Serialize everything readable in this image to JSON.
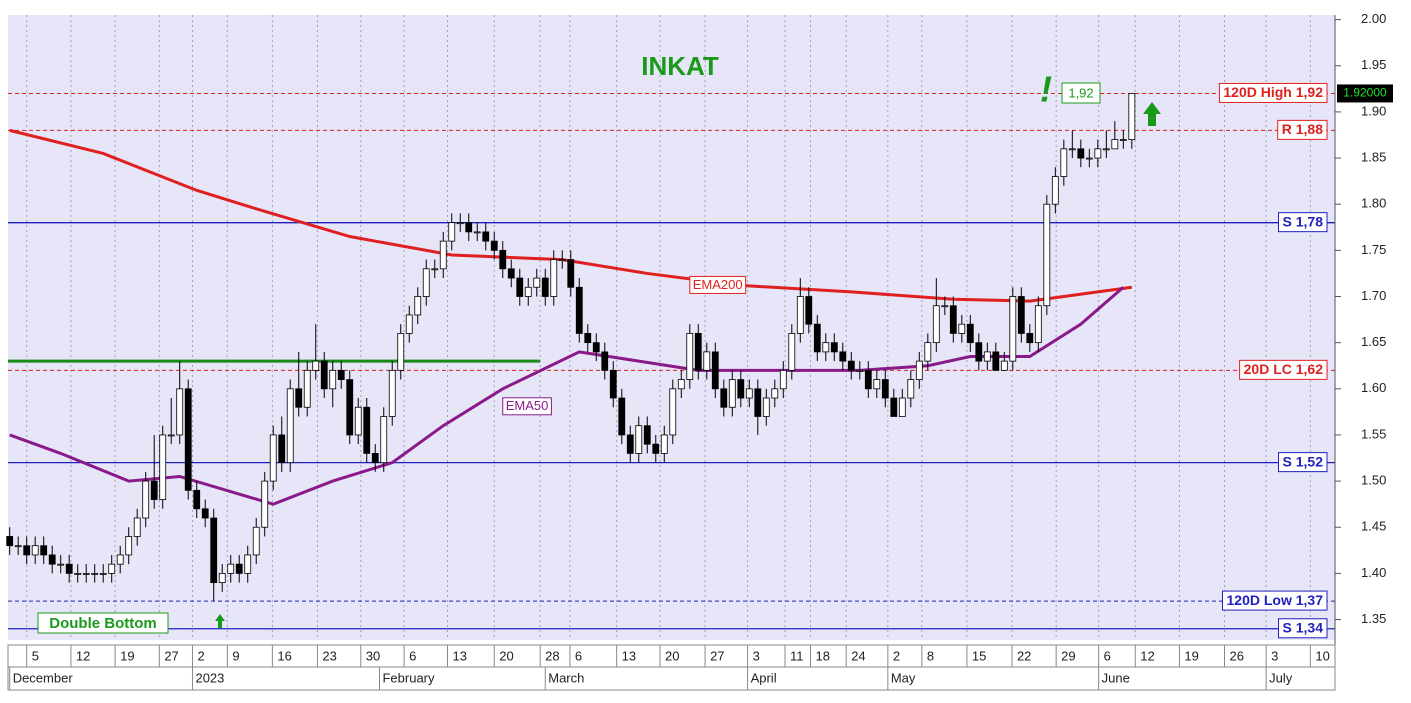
{
  "chart_data": {
    "type": "candlestick",
    "title": "INKAT",
    "open": [
      1.44,
      1.43,
      1.43,
      1.42,
      1.43,
      1.42,
      1.41,
      1.41,
      1.4,
      1.4,
      1.4,
      1.4,
      1.4,
      1.41,
      1.42,
      1.44,
      1.46,
      1.5,
      1.48,
      1.55,
      1.55,
      1.6,
      1.49,
      1.47,
      1.46,
      1.39,
      1.4,
      1.41,
      1.4,
      1.42,
      1.45,
      1.5,
      1.55,
      1.52,
      1.6,
      1.58,
      1.62,
      1.63,
      1.6,
      1.62,
      1.61,
      1.55,
      1.58,
      1.53,
      1.52,
      1.57,
      1.62,
      1.66,
      1.68,
      1.7,
      1.73,
      1.73,
      1.76,
      1.78,
      1.78,
      1.77,
      1.77,
      1.76,
      1.75,
      1.73,
      1.72,
      1.7,
      1.71,
      1.72,
      1.7,
      1.74,
      1.74,
      1.71,
      1.66,
      1.65,
      1.64,
      1.62,
      1.59,
      1.55,
      1.53,
      1.56,
      1.54,
      1.53,
      1.55,
      1.6,
      1.61,
      1.66,
      1.62,
      1.64,
      1.6,
      1.58,
      1.61,
      1.59,
      1.6,
      1.57,
      1.59,
      1.6,
      1.62,
      1.66,
      1.7,
      1.67,
      1.64,
      1.65,
      1.64,
      1.63,
      1.62,
      1.62,
      1.6,
      1.61,
      1.59,
      1.57,
      1.59,
      1.61,
      1.63,
      1.65,
      1.69,
      1.69,
      1.66,
      1.67,
      1.65,
      1.63,
      1.64,
      1.62,
      1.63,
      1.7,
      1.66,
      1.65,
      1.69,
      1.8,
      1.83,
      1.86,
      1.86,
      1.85,
      1.85,
      1.86,
      1.86,
      1.87,
      1.87
    ],
    "high": [
      1.45,
      1.44,
      1.44,
      1.44,
      1.44,
      1.43,
      1.42,
      1.42,
      1.41,
      1.41,
      1.41,
      1.41,
      1.42,
      1.43,
      1.45,
      1.47,
      1.51,
      1.55,
      1.56,
      1.59,
      1.63,
      1.61,
      1.5,
      1.48,
      1.47,
      1.41,
      1.42,
      1.42,
      1.43,
      1.46,
      1.51,
      1.56,
      1.57,
      1.61,
      1.64,
      1.63,
      1.67,
      1.64,
      1.63,
      1.63,
      1.62,
      1.59,
      1.59,
      1.54,
      1.58,
      1.63,
      1.67,
      1.69,
      1.71,
      1.74,
      1.74,
      1.77,
      1.79,
      1.79,
      1.79,
      1.78,
      1.78,
      1.77,
      1.76,
      1.74,
      1.73,
      1.72,
      1.73,
      1.73,
      1.75,
      1.75,
      1.75,
      1.72,
      1.67,
      1.66,
      1.65,
      1.63,
      1.6,
      1.56,
      1.57,
      1.57,
      1.55,
      1.56,
      1.61,
      1.62,
      1.67,
      1.67,
      1.65,
      1.65,
      1.61,
      1.62,
      1.62,
      1.61,
      1.61,
      1.6,
      1.61,
      1.63,
      1.67,
      1.72,
      1.71,
      1.68,
      1.66,
      1.66,
      1.65,
      1.64,
      1.63,
      1.63,
      1.62,
      1.62,
      1.6,
      1.6,
      1.62,
      1.64,
      1.66,
      1.72,
      1.7,
      1.7,
      1.68,
      1.68,
      1.66,
      1.65,
      1.65,
      1.64,
      1.71,
      1.71,
      1.67,
      1.7,
      1.81,
      1.84,
      1.87,
      1.88,
      1.87,
      1.86,
      1.87,
      1.88,
      1.89,
      1.88,
      1.92
    ],
    "low": [
      1.42,
      1.42,
      1.41,
      1.41,
      1.41,
      1.4,
      1.4,
      1.39,
      1.39,
      1.39,
      1.39,
      1.39,
      1.39,
      1.4,
      1.41,
      1.43,
      1.45,
      1.47,
      1.47,
      1.54,
      1.54,
      1.48,
      1.46,
      1.45,
      1.37,
      1.38,
      1.39,
      1.39,
      1.39,
      1.41,
      1.44,
      1.49,
      1.51,
      1.51,
      1.57,
      1.57,
      1.61,
      1.59,
      1.58,
      1.6,
      1.54,
      1.54,
      1.52,
      1.51,
      1.51,
      1.56,
      1.61,
      1.65,
      1.67,
      1.69,
      1.72,
      1.72,
      1.75,
      1.77,
      1.76,
      1.76,
      1.75,
      1.74,
      1.72,
      1.71,
      1.69,
      1.69,
      1.7,
      1.69,
      1.69,
      1.73,
      1.7,
      1.65,
      1.64,
      1.63,
      1.61,
      1.58,
      1.54,
      1.52,
      1.52,
      1.53,
      1.52,
      1.52,
      1.54,
      1.59,
      1.6,
      1.61,
      1.61,
      1.59,
      1.57,
      1.57,
      1.58,
      1.58,
      1.55,
      1.56,
      1.58,
      1.59,
      1.61,
      1.65,
      1.66,
      1.63,
      1.63,
      1.63,
      1.62,
      1.61,
      1.61,
      1.59,
      1.59,
      1.58,
      1.57,
      1.57,
      1.58,
      1.6,
      1.62,
      1.64,
      1.68,
      1.65,
      1.65,
      1.64,
      1.62,
      1.62,
      1.62,
      1.62,
      1.62,
      1.65,
      1.64,
      1.64,
      1.68,
      1.79,
      1.82,
      1.85,
      1.84,
      1.84,
      1.84,
      1.85,
      1.86,
      1.86,
      1.86
    ],
    "close": [
      1.43,
      1.43,
      1.42,
      1.43,
      1.42,
      1.41,
      1.41,
      1.4,
      1.4,
      1.4,
      1.4,
      1.4,
      1.41,
      1.42,
      1.44,
      1.46,
      1.5,
      1.48,
      1.55,
      1.55,
      1.6,
      1.49,
      1.47,
      1.46,
      1.39,
      1.4,
      1.41,
      1.4,
      1.42,
      1.45,
      1.5,
      1.55,
      1.52,
      1.6,
      1.58,
      1.62,
      1.63,
      1.6,
      1.62,
      1.61,
      1.55,
      1.58,
      1.53,
      1.52,
      1.57,
      1.62,
      1.66,
      1.68,
      1.7,
      1.73,
      1.73,
      1.76,
      1.78,
      1.78,
      1.77,
      1.77,
      1.76,
      1.75,
      1.73,
      1.72,
      1.7,
      1.71,
      1.72,
      1.7,
      1.74,
      1.74,
      1.71,
      1.66,
      1.65,
      1.64,
      1.62,
      1.59,
      1.55,
      1.53,
      1.56,
      1.54,
      1.53,
      1.55,
      1.6,
      1.61,
      1.66,
      1.62,
      1.64,
      1.6,
      1.58,
      1.61,
      1.59,
      1.6,
      1.57,
      1.59,
      1.6,
      1.62,
      1.66,
      1.7,
      1.67,
      1.64,
      1.65,
      1.64,
      1.63,
      1.62,
      1.62,
      1.6,
      1.61,
      1.59,
      1.57,
      1.59,
      1.61,
      1.63,
      1.65,
      1.69,
      1.69,
      1.66,
      1.67,
      1.65,
      1.63,
      1.64,
      1.62,
      1.63,
      1.7,
      1.66,
      1.65,
      1.69,
      1.8,
      1.83,
      1.86,
      1.86,
      1.85,
      1.85,
      1.86,
      1.86,
      1.87,
      1.87,
      1.92
    ],
    "lines": [
      {
        "name": "EMA200",
        "color": "#e02020",
        "x": [
          0,
          11,
          22,
          29,
          40,
          52,
          65,
          75,
          86,
          99,
          111,
          120,
          132
        ],
        "values": [
          1.88,
          1.855,
          1.815,
          1.795,
          1.765,
          1.745,
          1.74,
          1.725,
          1.712,
          1.705,
          1.697,
          1.695,
          1.71
        ],
        "label_at": 80
      },
      {
        "name": "EMA50",
        "color": "#8a1a8a",
        "x": [
          0,
          6,
          14,
          20,
          31,
          38,
          45,
          51,
          58,
          67,
          74,
          81,
          91,
          100,
          108,
          113,
          120,
          126,
          131
        ],
        "values": [
          1.55,
          1.53,
          1.5,
          1.505,
          1.475,
          1.5,
          1.52,
          1.56,
          1.6,
          1.64,
          1.63,
          1.62,
          1.62,
          1.62,
          1.625,
          1.635,
          1.635,
          1.67,
          1.71
        ],
        "label_at": 58
      }
    ],
    "levels": [
      {
        "value": 1.92,
        "label": "120D High 1,92",
        "color": "#e02020",
        "style": "dashed"
      },
      {
        "value": 1.88,
        "label": "R 1,88",
        "color": "#e02020",
        "style": "dashed"
      },
      {
        "value": 1.78,
        "label": "S 1,78",
        "color": "#2020c0",
        "style": "solid"
      },
      {
        "value": 1.62,
        "label": "20D LC 1,62",
        "color": "#e02020",
        "style": "dashed"
      },
      {
        "value": 1.52,
        "label": "S 1,52",
        "color": "#2020c0",
        "style": "solid"
      },
      {
        "value": 1.37,
        "label": "120D Low 1,37",
        "color": "#2020c0",
        "style": "dashed"
      },
      {
        "value": 1.34,
        "label": "S 1,34",
        "color": "#2020c0",
        "style": "solid"
      }
    ],
    "neckline": {
      "value": 1.63,
      "x": [
        -0.2,
        62.4
      ],
      "color": "#1a8a1a"
    },
    "current_price": {
      "value": 1.92,
      "label": "1.92000"
    },
    "annotations": {
      "pattern": "Double Bottom",
      "high_mark": "1,92",
      "exclamation": "!"
    },
    "ylim": [
      1.33,
      2.005
    ],
    "yticks": [
      {
        "value": 1.35,
        "label": "1.35"
      },
      {
        "value": 1.4,
        "label": "1.40"
      },
      {
        "value": 1.45,
        "label": "1.45"
      },
      {
        "value": 1.5,
        "label": "1.50"
      },
      {
        "value": 1.55,
        "label": "1.55"
      },
      {
        "value": 1.6,
        "label": "1.60"
      },
      {
        "value": 1.65,
        "label": "1.65"
      },
      {
        "value": 1.7,
        "label": "1.70"
      },
      {
        "value": 1.75,
        "label": "1.75"
      },
      {
        "value": 1.8,
        "label": "1.80"
      },
      {
        "value": 1.85,
        "label": "1.85"
      },
      {
        "value": 1.9,
        "label": "1.90"
      },
      {
        "value": 1.95,
        "label": "1.95"
      },
      {
        "value": 2.0,
        "label": "2.00"
      }
    ],
    "xlim": [
      -0.2,
      155.9
    ],
    "xticks": [
      {
        "value": 2,
        "label": "5"
      },
      {
        "value": 7.2,
        "label": "12"
      },
      {
        "value": 12.4,
        "label": "19"
      },
      {
        "value": 17.6,
        "label": "27"
      },
      {
        "value": 21.5,
        "label": "2"
      },
      {
        "value": 25.6,
        "label": "9"
      },
      {
        "value": 30.9,
        "label": "16"
      },
      {
        "value": 36.2,
        "label": "23"
      },
      {
        "value": 41.3,
        "label": "30"
      },
      {
        "value": 46.4,
        "label": "6"
      },
      {
        "value": 51.5,
        "label": "13"
      },
      {
        "value": 57,
        "label": "20"
      },
      {
        "value": 62.4,
        "label": "28"
      },
      {
        "value": 65.9,
        "label": "6"
      },
      {
        "value": 71.4,
        "label": "13"
      },
      {
        "value": 76.5,
        "label": "20"
      },
      {
        "value": 81.8,
        "label": "27"
      },
      {
        "value": 86.8,
        "label": "3"
      },
      {
        "value": 91.2,
        "label": "11"
      },
      {
        "value": 94.2,
        "label": "18"
      },
      {
        "value": 98.4,
        "label": "24"
      },
      {
        "value": 103.3,
        "label": "2"
      },
      {
        "value": 107.3,
        "label": "8"
      },
      {
        "value": 112.6,
        "label": "15"
      },
      {
        "value": 117.9,
        "label": "22"
      },
      {
        "value": 123.1,
        "label": "29"
      },
      {
        "value": 128.1,
        "label": "6"
      },
      {
        "value": 132.4,
        "label": "12"
      },
      {
        "value": 137.6,
        "label": "19"
      },
      {
        "value": 142.9,
        "label": "26"
      },
      {
        "value": 147.8,
        "label": "3"
      },
      {
        "value": 153,
        "label": "10"
      }
    ],
    "month_ticks": [
      {
        "value": 0,
        "label": "December"
      },
      {
        "value": 21.5,
        "label": "2023"
      },
      {
        "value": 43.5,
        "label": "February"
      },
      {
        "value": 63,
        "label": "March"
      },
      {
        "value": 86.8,
        "label": "April"
      },
      {
        "value": 103.3,
        "label": "May"
      },
      {
        "value": 128.1,
        "label": "June"
      },
      {
        "value": 147.8,
        "label": "July"
      }
    ],
    "grid": true
  }
}
